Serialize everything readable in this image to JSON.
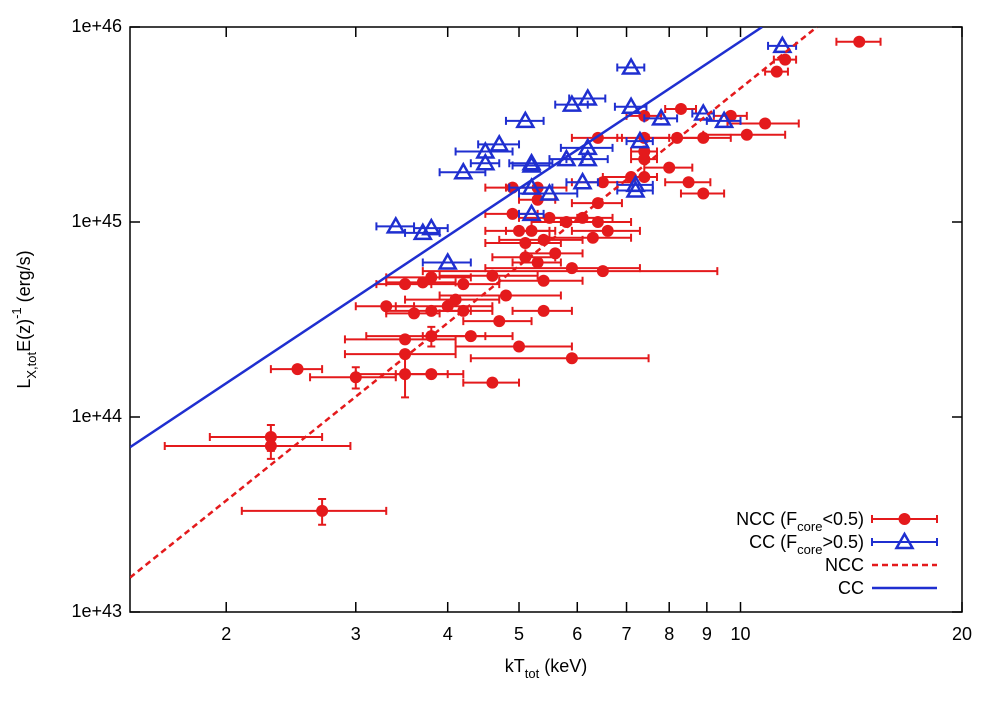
{
  "chart_data": {
    "type": "scatter",
    "xscale": "log",
    "yscale": "log",
    "xlim": [
      1.48,
      20
    ],
    "ylim": [
      1e+43,
      1e+46
    ],
    "xticks": [
      2,
      3,
      4,
      5,
      6,
      7,
      8,
      9,
      10,
      20
    ],
    "yticks": [
      {
        "value": 1e+43,
        "label": "1e+43"
      },
      {
        "value": 1e+44,
        "label": "1e+44"
      },
      {
        "value": 1e+45,
        "label": "1e+45"
      },
      {
        "value": 1e+46,
        "label": "1e+46"
      }
    ],
    "xlabel": [
      {
        "text": "kT"
      },
      {
        "text": "tot",
        "shift": "sub"
      },
      {
        "text": " (keV)"
      }
    ],
    "ylabel": [
      {
        "text": "L"
      },
      {
        "text": "X,tot",
        "shift": "sub"
      },
      {
        "text": "E(z)"
      },
      {
        "text": "-1",
        "shift": "sup"
      },
      {
        "text": " (erg/s)"
      }
    ],
    "legend": "lower right",
    "series": [
      {
        "name": [
          {
            "text": "NCC (F"
          },
          {
            "text": "core",
            "shift": "sub"
          },
          {
            "text": "<0.5)"
          }
        ],
        "color": "#e41a1c",
        "marker": "circle",
        "x": [
          14.5,
          11.5,
          11.2,
          10.8,
          10.2,
          9.7,
          8.9,
          8.3,
          8.2,
          8.0,
          8.5,
          8.9,
          7.4,
          7.4,
          6.4,
          7.4,
          7.4,
          7.4,
          7.1,
          6.5,
          5.3,
          4.9,
          5.3,
          6.4,
          4.9,
          5.5,
          6.1,
          5.0,
          5.2,
          5.8,
          6.4,
          6.6,
          6.3,
          5.4,
          5.1,
          5.1,
          5.3,
          5.6,
          5.9,
          6.5,
          5.4,
          4.6,
          4.2,
          3.8,
          3.7,
          3.5,
          4.8,
          4.1,
          4.0,
          3.3,
          3.6,
          3.8,
          4.2,
          5.4,
          4.7,
          4.3,
          3.8,
          3.5,
          5.0,
          5.9,
          3.5,
          2.5,
          3.0,
          3.5,
          3.8,
          4.6,
          2.3,
          2.3,
          2.7
        ],
        "values": [
          8.4e+45,
          6.8e+45,
          5.9e+45,
          3.2e+45,
          2.8e+45,
          3.5e+45,
          2.7e+45,
          3.8e+45,
          2.7e+45,
          1.9e+45,
          1.6e+45,
          1.4e+45,
          3.5e+45,
          2.7e+45,
          2.7e+45,
          2.3e+45,
          2.1e+45,
          1.7e+45,
          1.7e+45,
          1.6e+45,
          1.5e+45,
          1.5e+45,
          1.3e+45,
          1.25e+45,
          1.1e+45,
          1.05e+45,
          1.05e+45,
          9e+44,
          9e+44,
          1e+45,
          1e+45,
          9e+44,
          8.3e+44,
          8.1e+44,
          7.8e+44,
          6.6e+44,
          6.2e+44,
          6.9e+44,
          5.8e+44,
          5.6e+44,
          5e+44,
          5.3e+44,
          4.8e+44,
          5.2e+44,
          4.9e+44,
          4.8e+44,
          4.2e+44,
          4e+44,
          3.7e+44,
          3.7e+44,
          3.4e+44,
          3.5e+44,
          3.5e+44,
          3.5e+44,
          3.1e+44,
          2.6e+44,
          2.6e+44,
          2.5e+44,
          2.3e+44,
          2e+44,
          2.1e+44,
          1.76e+44,
          1.6e+44,
          1.66e+44,
          1.66e+44,
          1.5e+44,
          7.9e+43,
          7.1e+43,
          3.3e+43
        ],
        "xerr": [
          1.0,
          0.4,
          0.4,
          1.2,
          1.3,
          0.5,
          0.8,
          0.4,
          0.7,
          0.6,
          0.6,
          0.6,
          0.4,
          0.6,
          0.5,
          0.3,
          0.3,
          0.3,
          0.6,
          0.6,
          0.5,
          0.4,
          0.3,
          0.5,
          0.4,
          0.5,
          0.6,
          0.5,
          0.4,
          0.6,
          0.7,
          0.7,
          0.8,
          0.7,
          0.6,
          0.5,
          0.4,
          0.5,
          1.4,
          2.8,
          0.7,
          0.7,
          0.5,
          0.5,
          0.4,
          0.3,
          0.9,
          0.6,
          0.6,
          0.3,
          0.3,
          0.5,
          0.4,
          0.5,
          0.5,
          0.6,
          0.7,
          0.6,
          0.9,
          1.6,
          0.6,
          0.2,
          0.4,
          0.5,
          0.4,
          0.4,
          0.4,
          0.65,
          0.6
        ],
        "yerr": [
          null,
          null,
          null,
          null,
          null,
          null,
          null,
          null,
          null,
          null,
          null,
          null,
          null,
          null,
          null,
          null,
          null,
          null,
          null,
          null,
          null,
          null,
          null,
          null,
          null,
          null,
          null,
          null,
          null,
          null,
          null,
          null,
          null,
          null,
          null,
          null,
          null,
          null,
          null,
          null,
          null,
          null,
          null,
          null,
          null,
          null,
          null,
          null,
          null,
          null,
          null,
          null,
          null,
          null,
          null,
          null,
          3e+43,
          null,
          null,
          null,
          null,
          null,
          2e+43,
          4e+43,
          null,
          null,
          1.2e+43,
          1e+43,
          5e+42
        ]
      },
      {
        "name": [
          {
            "text": "CC (F"
          },
          {
            "text": "core",
            "shift": "sub"
          },
          {
            "text": ">0.5)"
          }
        ],
        "color": "#1f2fd0",
        "marker": "triangle",
        "x": [
          11.4,
          7.1,
          6.2,
          5.9,
          7.1,
          8.9,
          9.5,
          7.8,
          5.1,
          7.3,
          6.2,
          4.7,
          4.5,
          4.5,
          5.2,
          5.2,
          5.8,
          6.2,
          4.2,
          6.1,
          7.2,
          7.2,
          5.2,
          5.5,
          5.2,
          3.4,
          3.8,
          3.7,
          4.0
        ],
        "values": [
          8e+45,
          6.2e+45,
          4.3e+45,
          4e+45,
          3.9e+45,
          3.6e+45,
          3.3e+45,
          3.4e+45,
          3.3e+45,
          2.6e+45,
          2.4e+45,
          2.5e+45,
          2.3e+45,
          2e+45,
          2e+45,
          1.95e+45,
          2.1e+45,
          2.1e+45,
          1.8e+45,
          1.6e+45,
          1.55e+45,
          1.45e+45,
          1.5e+45,
          1.4e+45,
          1.1e+45,
          9.5e+44,
          9.3e+44,
          8.8e+44,
          6.2e+44
        ],
        "xerr": [
          0.5,
          0.3,
          0.35,
          0.3,
          0.35,
          0.3,
          0.5,
          0.4,
          0.3,
          0.3,
          0.5,
          0.3,
          0.4,
          0.2,
          0.35,
          0.3,
          0.3,
          0.4,
          0.3,
          0.3,
          0.4,
          0.4,
          0.35,
          0.5,
          0.2,
          0.2,
          0.2,
          0.2,
          0.3
        ]
      },
      {
        "name": [
          {
            "text": "NCC"
          }
        ],
        "color": "#e41a1c",
        "style": "dashed",
        "x": [
          1.48,
          12.7
        ],
        "values": [
          1.5e+43,
          1e+46
        ]
      },
      {
        "name": [
          {
            "text": "CC"
          }
        ],
        "color": "#1f2fd0",
        "style": "solid",
        "x": [
          1.48,
          10.7
        ],
        "values": [
          7e+43,
          1e+46
        ]
      }
    ]
  }
}
